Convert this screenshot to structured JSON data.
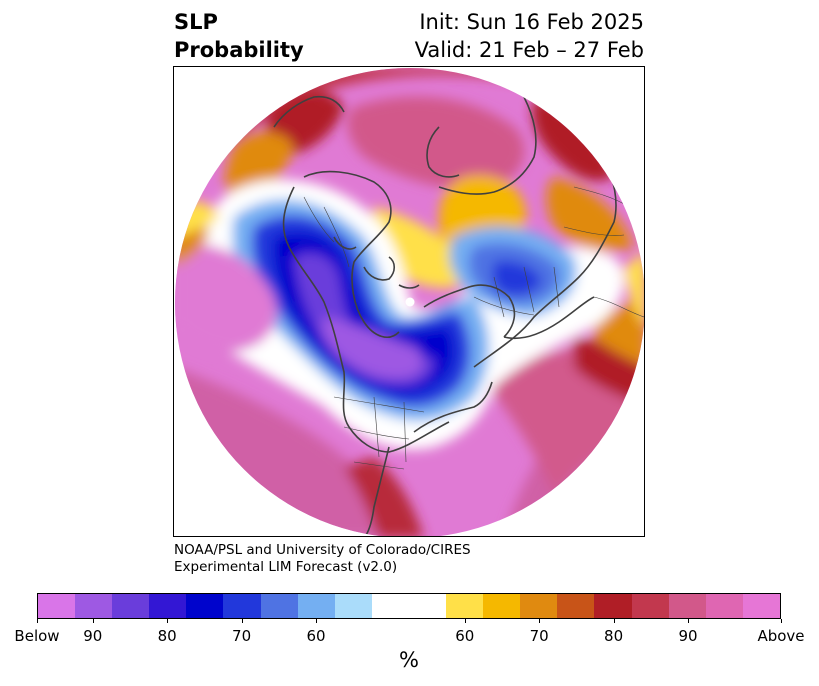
{
  "header": {
    "title_line1": "SLP",
    "title_line2": "Probability",
    "init": "Init: Sun 16 Feb 2025",
    "valid": "Valid: 21 Feb – 27 Feb"
  },
  "credit": {
    "line1": "NOAA/PSL and University of Colorado/CIRES",
    "line2": "Experimental LIM Forecast (v2.0)"
  },
  "colorbar": {
    "colors": [
      "#d975e8",
      "#9e59e3",
      "#6a3ddb",
      "#3317d4",
      "#0004cc",
      "#2238db",
      "#4f73e3",
      "#74aff2",
      "#aadcfa",
      "#ffffff",
      "#ffe048",
      "#f5b800",
      "#e08a10",
      "#c85418",
      "#b01e26",
      "#c2384e",
      "#d2588a",
      "#df66b2",
      "#e676d6"
    ],
    "ticks": [
      "Below",
      "90",
      "80",
      "70",
      "60",
      "60",
      "70",
      "80",
      "90",
      "Above"
    ],
    "unit": "%"
  },
  "map": {
    "colors": {
      "above_high": "#e676d6",
      "above_mid": "#d2588a",
      "above_red": "#b01e26",
      "above_orange": "#e08a10",
      "above_yellow": "#ffe048",
      "below_high": "#d975e8",
      "below_purple": "#6a3ddb",
      "below_blue": "#0004cc",
      "below_light": "#74aff2",
      "neutral": "#ffffff",
      "coast": "#404040"
    }
  }
}
